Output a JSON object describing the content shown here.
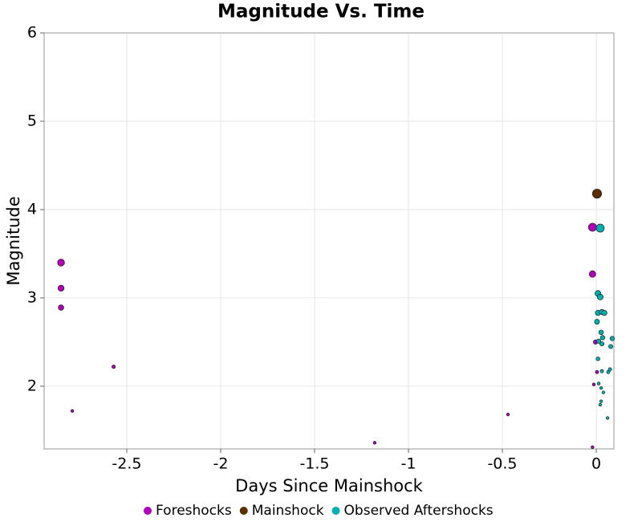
{
  "chart_data": {
    "type": "scatter",
    "title": "Magnitude Vs. Time",
    "x_label": "Days Since Mainshock",
    "y_label": "Magnitude",
    "xlim": [
      -2.94,
      0.094
    ],
    "ylim": [
      1.29,
      6
    ],
    "xticks": [
      -2.5,
      -2.0,
      -1.5,
      -1.0,
      -0.5,
      0.0
    ],
    "yticks": [
      2,
      3,
      4,
      5,
      6
    ],
    "grid": true,
    "legend": "bottom",
    "series": [
      {
        "name": "Foreshocks",
        "color": "#b000b8",
        "x": [
          -2.85,
          -2.85,
          -2.85,
          -2.79,
          -2.57,
          -1.18,
          -0.47,
          -0.02,
          -0.02,
          -0.02,
          -0.004,
          0.004,
          -0.013
        ],
        "values": [
          3.4,
          3.11,
          2.89,
          1.72,
          2.22,
          1.36,
          1.68,
          1.31,
          3.8,
          3.27,
          2.5,
          2.16,
          2.02
        ]
      },
      {
        "name": "Mainshock",
        "color": "#5a2d00",
        "x": [
          0.004
        ],
        "values": [
          4.18
        ]
      },
      {
        "name": "Observed Aftershocks",
        "color": "#00b0b0",
        "x": [
          0.021,
          0.009,
          0.021,
          0.009,
          0.03,
          0.043,
          0.004,
          0.026,
          0.034,
          0.013,
          0.03,
          0.085,
          0.077,
          0.009,
          0.03,
          0.064,
          0.073,
          0.013,
          0.026,
          0.038,
          0.021,
          0.026,
          0.06
        ],
        "values": [
          3.79,
          3.05,
          3.01,
          2.83,
          2.84,
          2.83,
          2.73,
          2.61,
          2.55,
          2.51,
          2.48,
          2.54,
          2.45,
          2.31,
          2.17,
          2.16,
          2.19,
          2.03,
          1.98,
          1.93,
          1.79,
          1.83,
          1.64
        ]
      }
    ]
  }
}
